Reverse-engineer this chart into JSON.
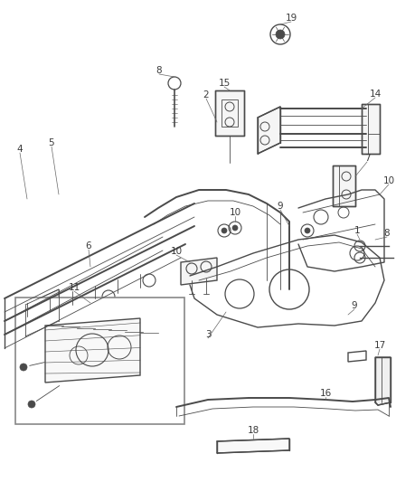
{
  "bg_color": "#ffffff",
  "line_color": "#4a4a4a",
  "label_color": "#3a3a3a",
  "fig_width": 4.38,
  "fig_height": 5.33,
  "dpi": 100,
  "label_fontsize": 7.0
}
